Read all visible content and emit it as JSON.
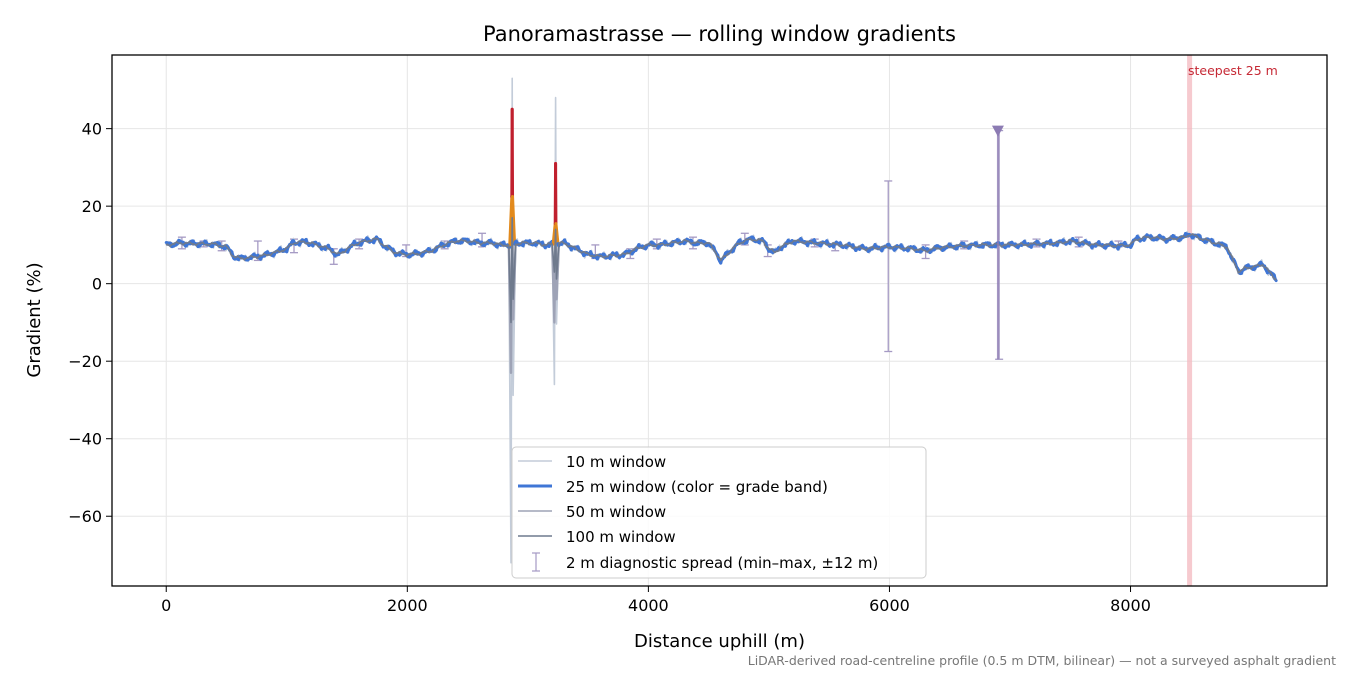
{
  "chart_data": {
    "type": "line",
    "title": "Panoramastrasse — rolling window gradients",
    "xlabel": "Distance uphill (m)",
    "ylabel": "Gradient (%)",
    "xlim": [
      -450,
      9630
    ],
    "ylim": [
      -78,
      59
    ],
    "xticks": [
      0,
      2000,
      4000,
      6000,
      8000
    ],
    "xtick_labels": [
      "0",
      "2000",
      "4000",
      "6000",
      "8000"
    ],
    "yticks": [
      40,
      20,
      0,
      -20,
      -40,
      -60
    ],
    "ytick_labels": [
      "40",
      "20",
      "0",
      "−20",
      "−40",
      "−60"
    ],
    "grid": true,
    "legend_position": "lower-center",
    "footnote": "LiDAR-derived road-centreline profile (0.5 m DTM, bilinear) — not a surveyed asphalt gradient",
    "annotation": {
      "text": "steepest 25 m",
      "x": 8490
    },
    "outlier_marker": {
      "x": 6900,
      "y": 39.5
    },
    "baseline_profile": [
      [
        0,
        10
      ],
      [
        120,
        10.5
      ],
      [
        250,
        10.3
      ],
      [
        400,
        10.2
      ],
      [
        500,
        9.5
      ],
      [
        560,
        7
      ],
      [
        620,
        6.5
      ],
      [
        700,
        6.8
      ],
      [
        800,
        7.2
      ],
      [
        900,
        8
      ],
      [
        1000,
        9
      ],
      [
        1050,
        10.5
      ],
      [
        1150,
        10.8
      ],
      [
        1250,
        10
      ],
      [
        1350,
        9
      ],
      [
        1420,
        7.5
      ],
      [
        1480,
        8.5
      ],
      [
        1550,
        10
      ],
      [
        1650,
        11
      ],
      [
        1750,
        11.5
      ],
      [
        1800,
        10
      ],
      [
        1900,
        8
      ],
      [
        2000,
        7.5
      ],
      [
        2100,
        7.8
      ],
      [
        2200,
        8.5
      ],
      [
        2300,
        10
      ],
      [
        2400,
        11
      ],
      [
        2500,
        11
      ],
      [
        2600,
        10.5
      ],
      [
        2700,
        10.5
      ],
      [
        2780,
        10
      ],
      [
        2840,
        10
      ],
      [
        2960,
        10.5
      ],
      [
        3050,
        10.5
      ],
      [
        3150,
        10
      ],
      [
        3300,
        10.5
      ],
      [
        3400,
        9
      ],
      [
        3500,
        7.5
      ],
      [
        3600,
        7
      ],
      [
        3800,
        7.5
      ],
      [
        3900,
        9
      ],
      [
        4000,
        10
      ],
      [
        4100,
        10
      ],
      [
        4200,
        10.5
      ],
      [
        4300,
        11
      ],
      [
        4400,
        10.5
      ],
      [
        4500,
        10.5
      ],
      [
        4560,
        8
      ],
      [
        4600,
        6
      ],
      [
        4650,
        7.5
      ],
      [
        4750,
        10.5
      ],
      [
        4850,
        11.5
      ],
      [
        4950,
        11
      ],
      [
        5000,
        9
      ],
      [
        5050,
        8
      ],
      [
        5100,
        9.5
      ],
      [
        5200,
        11
      ],
      [
        5400,
        10.5
      ],
      [
        5600,
        10
      ],
      [
        5700,
        9.5
      ],
      [
        5800,
        9
      ],
      [
        6000,
        9.5
      ],
      [
        6200,
        9
      ],
      [
        6300,
        8.5
      ],
      [
        6400,
        9.2
      ],
      [
        6600,
        9.8
      ],
      [
        6800,
        10
      ],
      [
        7000,
        10
      ],
      [
        7200,
        10.2
      ],
      [
        7400,
        10.5
      ],
      [
        7500,
        11
      ],
      [
        7600,
        10.5
      ],
      [
        7700,
        10
      ],
      [
        7900,
        9.8
      ],
      [
        8000,
        10
      ],
      [
        8050,
        11.5
      ],
      [
        8150,
        12
      ],
      [
        8300,
        11.5
      ],
      [
        8450,
        12
      ],
      [
        8490,
        12.8
      ],
      [
        8600,
        11.5
      ],
      [
        8700,
        10.5
      ],
      [
        8800,
        9.5
      ],
      [
        8850,
        6
      ],
      [
        8900,
        3
      ],
      [
        8950,
        4
      ],
      [
        9050,
        4.5
      ],
      [
        9100,
        5
      ],
      [
        9150,
        3
      ],
      [
        9210,
        1
      ]
    ],
    "spike_events": [
      {
        "x": 2870,
        "w10_max": 53,
        "w10_min": -72,
        "w25_max": 45,
        "w50_max": 27,
        "w50_min": -23,
        "w100_max": 17,
        "w100_min": -10
      },
      {
        "x": 3230,
        "w10_max": 48,
        "w10_min": -26,
        "w25_max": 31,
        "w50_max": 19,
        "w50_min": -10,
        "w100_max": 14,
        "w100_min": 3
      }
    ],
    "grade_bands": [
      {
        "min": 0,
        "max": 15,
        "color": "#3f76d6"
      },
      {
        "min": 15,
        "max": 25,
        "color": "#e28a1d"
      },
      {
        "min": 25,
        "max": 100,
        "color": "#c0202e"
      }
    ],
    "diagnostic_spread": [
      {
        "x": 130,
        "lo": 9,
        "hi": 12
      },
      {
        "x": 310,
        "lo": 9.5,
        "hi": 11
      },
      {
        "x": 460,
        "lo": 8.5,
        "hi": 11
      },
      {
        "x": 760,
        "lo": 6,
        "hi": 11
      },
      {
        "x": 1060,
        "lo": 8,
        "hi": 11.5
      },
      {
        "x": 1390,
        "lo": 5,
        "hi": 9
      },
      {
        "x": 1600,
        "lo": 9,
        "hi": 11.5
      },
      {
        "x": 1990,
        "lo": 7,
        "hi": 10
      },
      {
        "x": 2310,
        "lo": 9,
        "hi": 11
      },
      {
        "x": 2620,
        "lo": 9.5,
        "hi": 13
      },
      {
        "x": 3560,
        "lo": 6.5,
        "hi": 10
      },
      {
        "x": 3850,
        "lo": 6.5,
        "hi": 9
      },
      {
        "x": 4070,
        "lo": 9,
        "hi": 11.5
      },
      {
        "x": 4370,
        "lo": 9,
        "hi": 12
      },
      {
        "x": 4800,
        "lo": 10,
        "hi": 13
      },
      {
        "x": 4990,
        "lo": 7,
        "hi": 10
      },
      {
        "x": 5380,
        "lo": 9.5,
        "hi": 11.5
      },
      {
        "x": 5550,
        "lo": 8.5,
        "hi": 10
      },
      {
        "x": 5990,
        "lo": -17.5,
        "hi": 26.5
      },
      {
        "x": 6300,
        "lo": 6.5,
        "hi": 10
      },
      {
        "x": 6620,
        "lo": 9,
        "hi": 11
      },
      {
        "x": 6910,
        "lo": -19.5,
        "hi": 39.5
      },
      {
        "x": 7220,
        "lo": 9.5,
        "hi": 11.5
      },
      {
        "x": 7570,
        "lo": 9.5,
        "hi": 12
      },
      {
        "x": 7900,
        "lo": 9.5,
        "hi": 11
      }
    ],
    "series": [
      {
        "name": "10 m window",
        "color": "#c3ccd9",
        "width": 1.6
      },
      {
        "name": "25 m window (color = grade band)",
        "color": "#3f76d6",
        "width": 3
      },
      {
        "name": "50 m window",
        "color": "#9ea3b6",
        "width": 1.6
      },
      {
        "name": "100 m window",
        "color": "#6f7a8d",
        "width": 1.6
      },
      {
        "name": "2 m diagnostic spread (min–max, ±12 m)",
        "color": "#a59ac4",
        "width": 1.2
      }
    ],
    "colors": {
      "annotation": "#c62935",
      "annotation_band": "#f3b8bf",
      "outlier": "#8c7bb3",
      "grid": "#e6e6e6"
    }
  }
}
